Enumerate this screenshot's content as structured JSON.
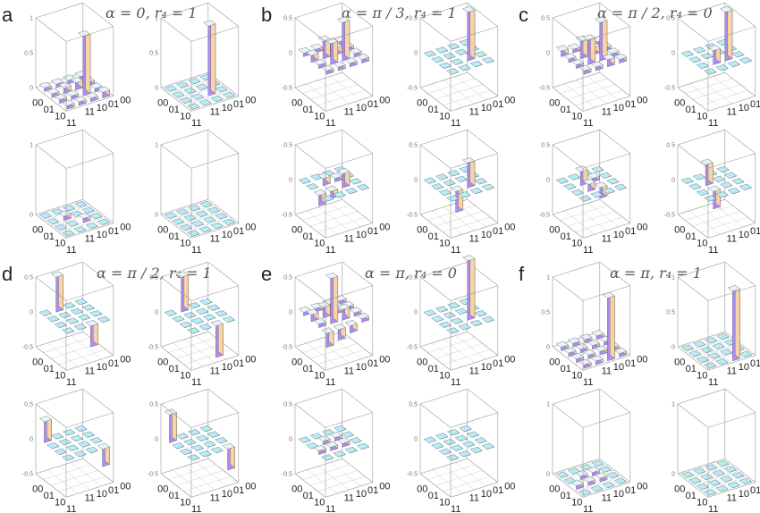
{
  "figure": {
    "ticks": {
      "row": [
        "00",
        "01",
        "10",
        "11"
      ],
      "col": [
        "00",
        "01",
        "10",
        "11"
      ]
    },
    "colors": {
      "bar_top": "#e6f4fb",
      "bar_front": "#ad8cf0",
      "bar_side": "#f6d4a6",
      "zero_tile_top": "#b6ecf8",
      "zero_tile_front": "#7fc2e0",
      "zero_tile_side": "#a3d8ee",
      "box_line": "#9a9a9a",
      "floor_line": "#cfcfcf",
      "title_text": "#555555",
      "label_text": "#222222"
    },
    "panels": [
      {
        "label": "a",
        "title": "α = 0, r₄ = 1"
      },
      {
        "label": "b",
        "title": "α = π / 3, r₄ = 1"
      },
      {
        "label": "c",
        "title": "α = π / 2, r₄ = 0"
      },
      {
        "label": "d",
        "title": "α = π / 2, r₄ = 1"
      },
      {
        "label": "e",
        "title": "α = π, r₄ = 0"
      },
      {
        "label": "f",
        "title": "α = π, r₄ = 1"
      }
    ]
  },
  "chart_data": [
    {
      "panel": "a",
      "type": "bar3d",
      "matrices": [
        {
          "zlim": [
            0,
            1
          ],
          "zticks": [
            "0",
            "0.5",
            "1"
          ],
          "values": [
            [
              0.05,
              0.05,
              0.05,
              0.05
            ],
            [
              0.05,
              0.08,
              0.1,
              0.05
            ],
            [
              0.05,
              0.05,
              0.85,
              0.05
            ],
            [
              0.05,
              0.05,
              0.05,
              0.08
            ]
          ]
        },
        {
          "zlim": [
            0,
            1
          ],
          "zticks": [
            "0",
            "0.5",
            "1"
          ],
          "values": [
            [
              0,
              0,
              0,
              0
            ],
            [
              0,
              0,
              0,
              0
            ],
            [
              0,
              0,
              1.0,
              0
            ],
            [
              0,
              0,
              0,
              0
            ]
          ]
        },
        {
          "zlim": [
            0,
            1
          ],
          "zticks": [
            "0",
            "1"
          ],
          "values": [
            [
              0,
              0,
              0,
              0
            ],
            [
              0,
              0.06,
              0,
              0
            ],
            [
              0,
              0,
              0.06,
              0
            ],
            [
              0,
              0,
              0,
              0
            ]
          ]
        },
        {
          "zlim": [
            0,
            1
          ],
          "zticks": [
            "0",
            "1"
          ],
          "values": [
            [
              0,
              0,
              0,
              0
            ],
            [
              0,
              0,
              0,
              0
            ],
            [
              0,
              0,
              0,
              0
            ],
            [
              0,
              0,
              0,
              0
            ]
          ]
        }
      ]
    },
    {
      "panel": "b",
      "type": "bar3d",
      "matrices": [
        {
          "zlim": [
            -0.5,
            0.5
          ],
          "zticks": [
            "-0.5",
            "0",
            "0.5"
          ],
          "values": [
            [
              0.05,
              0.05,
              0.05,
              0.05
            ],
            [
              0.1,
              0.25,
              0.1,
              0.05
            ],
            [
              0.05,
              0.3,
              0.55,
              0.05
            ],
            [
              0.05,
              0.05,
              0.05,
              0.05
            ]
          ]
        },
        {
          "zlim": [
            -0.5,
            0.5
          ],
          "zticks": [
            "-0.5",
            "0",
            "0.5"
          ],
          "values": [
            [
              0,
              0,
              0,
              0
            ],
            [
              0,
              0,
              0,
              0
            ],
            [
              0,
              0,
              0.7,
              0
            ],
            [
              0,
              0,
              0,
              0
            ]
          ]
        },
        {
          "zlim": [
            -0.5,
            0.5
          ],
          "zticks": [
            "-0.5",
            "0",
            "0.5"
          ],
          "values": [
            [
              0,
              0,
              0,
              0
            ],
            [
              0,
              0.1,
              0.05,
              0
            ],
            [
              -0.15,
              -0.1,
              0.2,
              0
            ],
            [
              0,
              0,
              0,
              0
            ]
          ]
        },
        {
          "zlim": [
            -0.5,
            0.5
          ],
          "zticks": [
            "-0.5",
            "0",
            "0.5"
          ],
          "values": [
            [
              0,
              0,
              0,
              0
            ],
            [
              0,
              0,
              0,
              0
            ],
            [
              0,
              -0.3,
              0.35,
              0
            ],
            [
              0,
              0,
              0,
              0
            ]
          ]
        }
      ]
    },
    {
      "panel": "c",
      "type": "bar3d",
      "matrices": [
        {
          "zlim": [
            -0.5,
            0.5
          ],
          "zticks": [
            "-0.5",
            "0",
            "0.5"
          ],
          "values": [
            [
              0.08,
              0.05,
              0.05,
              0.05
            ],
            [
              0.05,
              0.25,
              0.1,
              0.05
            ],
            [
              0.05,
              0.35,
              0.55,
              0.05
            ],
            [
              0.05,
              0.05,
              0.1,
              0.05
            ]
          ]
        },
        {
          "zlim": [
            -0.5,
            0.5
          ],
          "zticks": [
            "-0.5",
            "0",
            "0.5"
          ],
          "values": [
            [
              0,
              0,
              0,
              0
            ],
            [
              0,
              0,
              0,
              0
            ],
            [
              0,
              0.2,
              0.7,
              0
            ],
            [
              0,
              0,
              0,
              0
            ]
          ]
        },
        {
          "zlim": [
            -0.5,
            0.5
          ],
          "zticks": [
            "-0.5",
            "0",
            "0.5"
          ],
          "values": [
            [
              0,
              0,
              0,
              0
            ],
            [
              0,
              0.2,
              0.05,
              0
            ],
            [
              0,
              0.1,
              -0.15,
              0
            ],
            [
              0,
              0,
              0,
              0
            ]
          ]
        },
        {
          "zlim": [
            -0.5,
            0.5
          ],
          "zticks": [
            "-0.5",
            "0",
            "0.5"
          ],
          "values": [
            [
              0,
              0,
              0,
              0
            ],
            [
              0,
              0.3,
              0,
              0
            ],
            [
              0,
              -0.25,
              0,
              0
            ],
            [
              0,
              0,
              0,
              0
            ]
          ]
        }
      ]
    },
    {
      "panel": "d",
      "type": "bar3d",
      "matrices": [
        {
          "zlim": [
            -0.5,
            0.5
          ],
          "zticks": [
            "-0.5",
            "0",
            "0.5"
          ],
          "values": [
            [
              0,
              0.5,
              0,
              0
            ],
            [
              0,
              0,
              0,
              0
            ],
            [
              0,
              0,
              0,
              0
            ],
            [
              0,
              0,
              -0.3,
              0
            ]
          ]
        },
        {
          "zlim": [
            -0.5,
            0.5
          ],
          "zticks": [
            "-0.5",
            "0",
            "0.5"
          ],
          "values": [
            [
              0,
              0.5,
              0,
              0
            ],
            [
              0,
              0,
              0,
              0
            ],
            [
              0,
              0,
              0,
              0
            ],
            [
              0,
              0,
              -0.45,
              0
            ]
          ]
        },
        {
          "zlim": [
            -0.5,
            0.5
          ],
          "zticks": [
            "-0.5",
            "0",
            "0.5"
          ],
          "values": [
            [
              0.3,
              0,
              0,
              0
            ],
            [
              0,
              0,
              0,
              0
            ],
            [
              0,
              0,
              0,
              0
            ],
            [
              0,
              0,
              0,
              -0.25
            ]
          ]
        },
        {
          "zlim": [
            -0.5,
            0.5
          ],
          "zticks": [
            "-0.5",
            "0",
            "0.5"
          ],
          "values": [
            [
              0.4,
              0,
              0,
              0
            ],
            [
              0,
              0,
              0,
              0
            ],
            [
              0,
              0,
              0,
              0
            ],
            [
              0,
              0,
              0,
              -0.3
            ]
          ]
        }
      ]
    },
    {
      "panel": "e",
      "type": "bar3d",
      "matrices": [
        {
          "zlim": [
            -0.5,
            0.5
          ],
          "zticks": [
            "-0.5",
            "0",
            "0.5"
          ],
          "values": [
            [
              0.05,
              0.05,
              0.05,
              0.05
            ],
            [
              0.1,
              0.15,
              0.1,
              0.05
            ],
            [
              0.05,
              0.65,
              0.15,
              0.05
            ],
            [
              -0.2,
              -0.15,
              -0.1,
              0.05
            ]
          ]
        },
        {
          "zlim": [
            -0.5,
            0.5
          ],
          "zticks": [
            "-0.5",
            "0",
            "0.5"
          ],
          "values": [
            [
              0,
              0,
              0,
              0
            ],
            [
              0,
              0,
              0,
              0
            ],
            [
              0,
              0,
              0.85,
              0
            ],
            [
              0,
              0,
              0,
              0
            ]
          ]
        },
        {
          "zlim": [
            -0.5,
            0.5
          ],
          "zticks": [
            "-0.5",
            "0",
            "0.5"
          ],
          "values": [
            [
              0,
              0,
              0,
              0
            ],
            [
              0,
              0.05,
              0.05,
              0
            ],
            [
              0.05,
              0.05,
              0.05,
              0
            ],
            [
              0,
              0,
              0,
              0
            ]
          ]
        },
        {
          "zlim": [
            -0.5,
            0.5
          ],
          "zticks": [
            "-0.5",
            "0",
            "0.5"
          ],
          "values": [
            [
              0,
              0,
              0,
              0
            ],
            [
              0,
              0,
              0,
              0
            ],
            [
              0,
              0,
              0,
              0
            ],
            [
              0,
              0,
              0,
              0
            ]
          ]
        }
      ]
    },
    {
      "panel": "f",
      "type": "bar3d",
      "matrices": [
        {
          "zlim": [
            0,
            1
          ],
          "zticks": [
            "0",
            "0.5",
            "1"
          ],
          "values": [
            [
              0.05,
              0.05,
              0.05,
              0.05
            ],
            [
              0.05,
              0.05,
              0.05,
              0.05
            ],
            [
              0.05,
              0.05,
              0.05,
              0.05
            ],
            [
              0.05,
              0.05,
              0.9,
              0.05
            ]
          ]
        },
        {
          "zlim": [
            0,
            1
          ],
          "zticks": [
            "0",
            "0.5",
            "1"
          ],
          "values": [
            [
              0,
              0,
              0,
              0
            ],
            [
              0,
              0,
              0,
              0
            ],
            [
              0,
              0,
              0,
              0
            ],
            [
              0,
              0,
              1.0,
              0
            ]
          ]
        },
        {
          "zlim": [
            0,
            1
          ],
          "zticks": [
            "0",
            "1"
          ],
          "values": [
            [
              0,
              0,
              0,
              0
            ],
            [
              0,
              0.05,
              0.05,
              0
            ],
            [
              0.05,
              0.05,
              0.05,
              0
            ],
            [
              0,
              0,
              0,
              0
            ]
          ]
        },
        {
          "zlim": [
            0,
            1
          ],
          "zticks": [
            "0",
            "1"
          ],
          "values": [
            [
              0,
              0,
              0,
              0
            ],
            [
              0,
              0,
              0,
              0
            ],
            [
              0,
              0,
              0,
              0
            ],
            [
              0,
              0,
              0,
              0
            ]
          ]
        }
      ]
    }
  ]
}
